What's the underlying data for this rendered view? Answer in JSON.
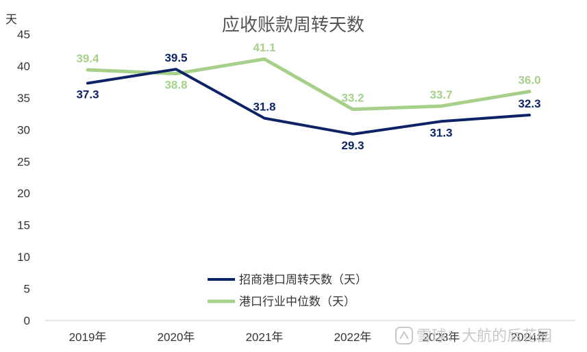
{
  "chart_data": {
    "type": "line",
    "title": "应收账款周转天数",
    "ylabel": "天",
    "xlabel": "",
    "categories": [
      "2019年",
      "2020年",
      "2021年",
      "2022年",
      "2023年",
      "2024年"
    ],
    "ylim": [
      0,
      45
    ],
    "yticks": [
      0,
      5,
      10,
      15,
      20,
      25,
      30,
      35,
      40,
      45
    ],
    "grid": false,
    "legend_position": "bottom-center",
    "series": [
      {
        "name": "招商港口周转天数（天）",
        "values": [
          37.3,
          39.5,
          31.8,
          29.3,
          31.3,
          32.3
        ],
        "labels": [
          "37.3",
          "39.5",
          "31.8",
          "29.3",
          "31.3",
          "32.3"
        ],
        "color": "#0d2366"
      },
      {
        "name": "港口行业中位数（天）",
        "values": [
          39.4,
          38.8,
          41.1,
          33.2,
          33.7,
          36.0
        ],
        "labels": [
          "39.4",
          "38.8",
          "41.1",
          "33.2",
          "33.7",
          "36.0"
        ],
        "color": "#a6d08a"
      }
    ]
  },
  "watermark": {
    "text": "雪球：大航的后花园",
    "color": "#c8c8c8"
  }
}
